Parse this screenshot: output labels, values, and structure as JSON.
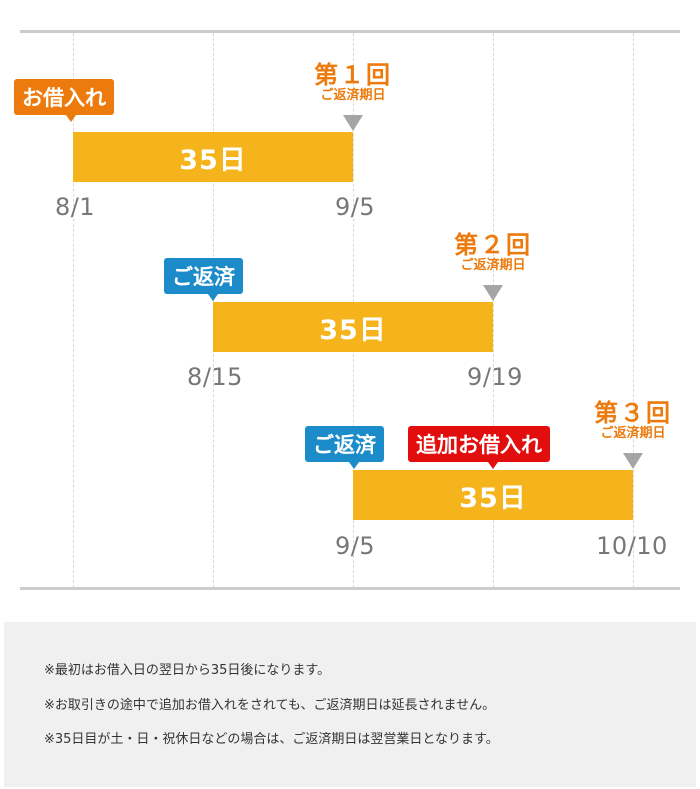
{
  "timeline": {
    "rows": [
      {
        "tag": {
          "label": "お借入れ",
          "color": "#ed7a0d"
        },
        "bar_label": "35日",
        "start_date": "8/1",
        "end_date": "9/5",
        "due": {
          "title": "第１回",
          "subtitle": "ご返済期日"
        }
      },
      {
        "tag": {
          "label": "ご返済",
          "color": "#1b8bc9"
        },
        "bar_label": "35日",
        "start_date": "8/15",
        "end_date": "9/19",
        "due": {
          "title": "第２回",
          "subtitle": "ご返済期日"
        }
      },
      {
        "tag": {
          "label": "ご返済",
          "color": "#1b8bc9"
        },
        "extra_tag": {
          "label": "追加お借入れ",
          "color": "#e20e0e"
        },
        "bar_label": "35日",
        "start_date": "9/5",
        "end_date": "10/10",
        "due": {
          "title": "第３回",
          "subtitle": "ご返済期日"
        }
      }
    ],
    "bar_color": "#f5b41c",
    "due_color": "#ed7a0d"
  },
  "notes": [
    "※最初はお借入日の翌日から35日後になります。",
    "※お取引きの途中で追加お借入れをされても、ご返済期日は延長されません。",
    "※35日目が土・日・祝休日などの場合は、ご返済期日は翌営業日となります。"
  ]
}
